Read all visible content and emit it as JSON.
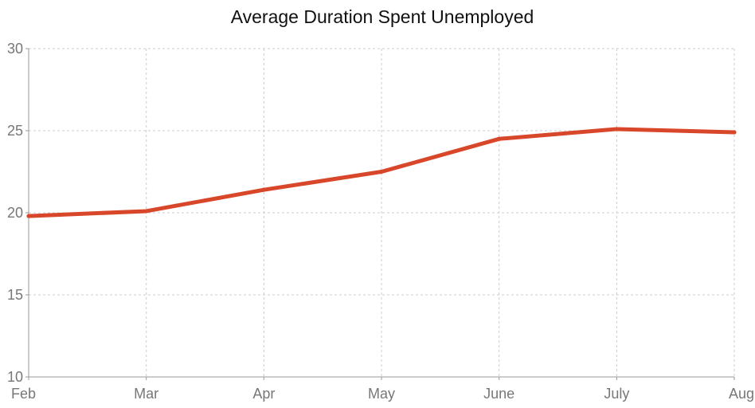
{
  "chart_data": {
    "type": "line",
    "title": "Average Duration Spent Unemployed",
    "xlabel": "",
    "ylabel": "",
    "categories": [
      "Feb",
      "Mar",
      "Apr",
      "May",
      "June",
      "July",
      "Aug"
    ],
    "series": [
      {
        "values": [
          19.8,
          20.1,
          21.4,
          22.5,
          24.5,
          25.1,
          24.9
        ],
        "color": "#d9472b"
      }
    ],
    "ylim": [
      10,
      30
    ],
    "yticks": [
      10,
      15,
      20,
      25,
      30
    ],
    "grid": true,
    "legend": "none"
  }
}
